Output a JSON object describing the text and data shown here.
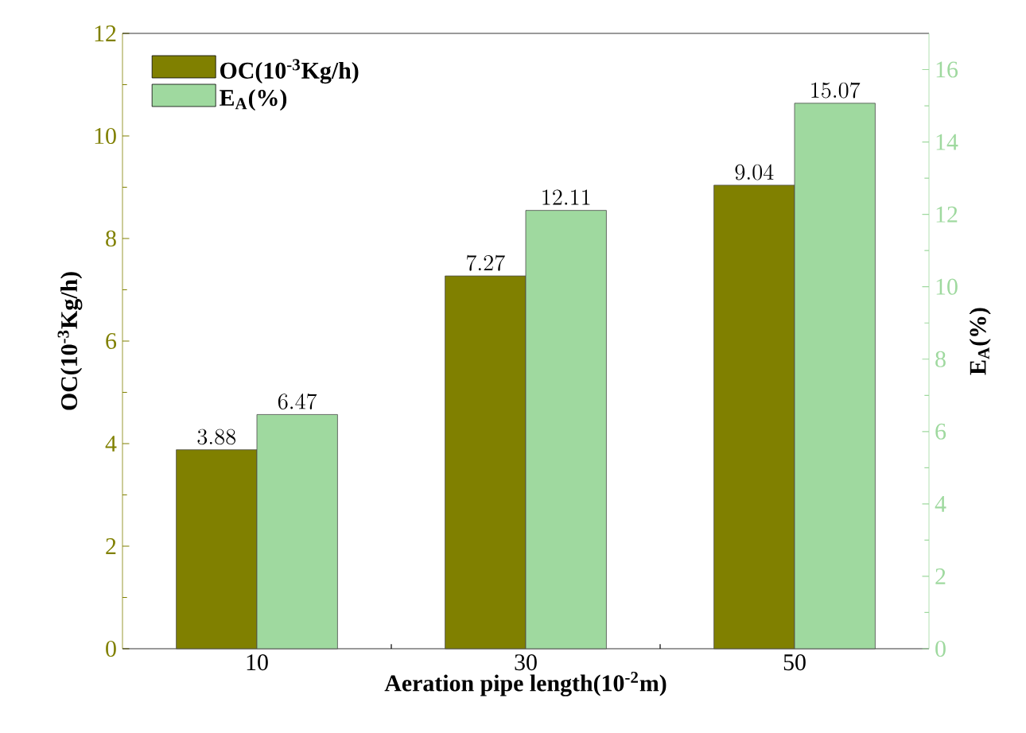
{
  "chart_data": {
    "type": "bar",
    "xlabel": "Aeration pipe length(10$^{-2}$m)",
    "ylabel": "OC(10$^{-3}$Kg/h)",
    "y2label": "E$_{A}$(%)",
    "categories": [
      "10",
      "30",
      "50"
    ],
    "series": [
      {
        "name": "OC(10$^{-3}$Kg/h)",
        "color": "#808000",
        "values": [
          3.88,
          7.27,
          9.04
        ]
      },
      {
        "name": "E$_{A}$(%)",
        "color": "#9fd99f",
        "values": [
          6.47,
          12.11,
          15.07
        ],
        "axis": "y2"
      }
    ],
    "ylim": [
      0,
      12
    ],
    "yticks": [
      0,
      2,
      4,
      6,
      8,
      10,
      12
    ],
    "y2lim": [
      0,
      17
    ],
    "y2ticks": [
      0,
      2,
      4,
      6,
      8,
      10,
      12,
      14,
      16
    ],
    "data_labels": true,
    "legend": "top left"
  }
}
